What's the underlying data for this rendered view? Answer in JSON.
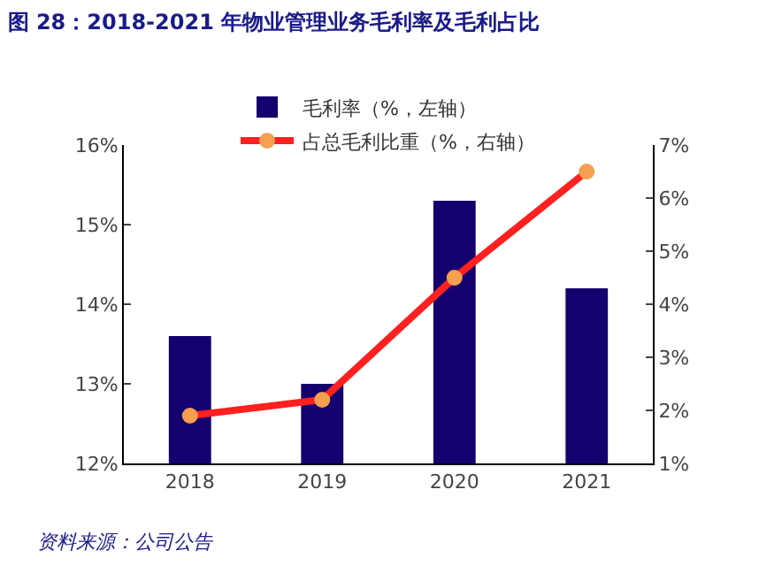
{
  "chart_data": {
    "type": "bar",
    "title": "图 28：2018-2021 年物业管理业务毛利率及毛利占比",
    "categories": [
      "2018",
      "2019",
      "2020",
      "2021"
    ],
    "series": [
      {
        "name": "毛利率（%，左轴）",
        "color": "#14006e",
        "values": [
          13.6,
          13.0,
          15.3,
          14.2
        ]
      },
      {
        "name": "占总毛利比重（%，右轴）",
        "type": "line",
        "axis": "y2",
        "color": "#ff2020",
        "values": [
          1.9,
          2.2,
          4.5,
          6.5
        ]
      }
    ],
    "ylim": [
      12,
      16
    ],
    "yticks": [
      {
        "value": 12,
        "label": "12%"
      },
      {
        "value": 13,
        "label": "13%"
      },
      {
        "value": 14,
        "label": "14%"
      },
      {
        "value": 15,
        "label": "15%"
      },
      {
        "value": 16,
        "label": "16%"
      }
    ],
    "y2lim": [
      1,
      7
    ],
    "y2ticks": [
      {
        "value": 1,
        "label": "1%"
      },
      {
        "value": 2,
        "label": "2%"
      },
      {
        "value": 3,
        "label": "3%"
      },
      {
        "value": 4,
        "label": "4%"
      },
      {
        "value": 5,
        "label": "5%"
      },
      {
        "value": 6,
        "label": "6%"
      },
      {
        "value": 7,
        "label": "7%"
      }
    ],
    "marker": "circle",
    "grid": false,
    "legend": "top",
    "annotations": [
      "资料来源：公司公告"
    ]
  }
}
